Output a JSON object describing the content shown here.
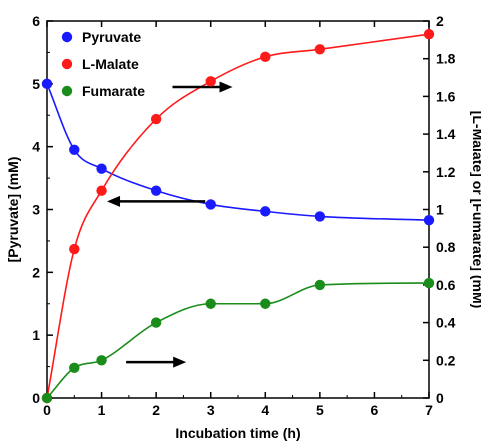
{
  "chart_data": {
    "type": "line",
    "xlabel": "Incubation time (h)",
    "ylabel_left": "[Pyruvate] (mM)",
    "ylabel_right": "[L-Malate] or [Fumarate] (mM)",
    "xlim": [
      0,
      7
    ],
    "ylim_left": [
      0,
      6
    ],
    "ylim_right": [
      0,
      2
    ],
    "x_ticks": [
      "0",
      "1",
      "2",
      "3",
      "4",
      "5",
      "6",
      "7"
    ],
    "y_left_ticks": [
      "0",
      "1",
      "2",
      "3",
      "4",
      "5",
      "6"
    ],
    "y_right_ticks": [
      "0",
      "0.2",
      "0.4",
      "0.6",
      "0.8",
      "1",
      "1.2",
      "1.4",
      "1.6",
      "1.8",
      "2"
    ],
    "grid": false,
    "legend_position": "top-left",
    "series": [
      {
        "name": "Pyruvate",
        "axis": "left",
        "color": "#1a1aff",
        "x": [
          0,
          0.5,
          1,
          2,
          3,
          4,
          5,
          7
        ],
        "y": [
          5.0,
          3.95,
          3.65,
          3.3,
          3.08,
          2.97,
          2.89,
          2.83
        ]
      },
      {
        "name": "L-Malate",
        "axis": "right",
        "color": "#ff1a1a",
        "x": [
          0,
          0.5,
          1,
          2,
          3,
          4,
          5,
          7
        ],
        "y": [
          0.0,
          0.79,
          1.1,
          1.48,
          1.68,
          1.81,
          1.85,
          1.93
        ]
      },
      {
        "name": "Fumarate",
        "axis": "right",
        "color": "#1a8c1a",
        "x": [
          0,
          0.5,
          1,
          2,
          3,
          4,
          5,
          7
        ],
        "y": [
          0.0,
          0.16,
          0.2,
          0.4,
          0.5,
          0.5,
          0.6,
          0.61
        ]
      }
    ],
    "annotations": [
      {
        "type": "arrow",
        "direction": "right",
        "x_from": 2.3,
        "x_to": 3.4,
        "y": 1.65,
        "axis": "right",
        "points_to": "L-Malate"
      },
      {
        "type": "arrow",
        "direction": "left",
        "x_from": 2.9,
        "x_to": 1.1,
        "y": 3.13,
        "axis": "left",
        "points_to": "Pyruvate"
      },
      {
        "type": "arrow",
        "direction": "right",
        "x_from": 1.45,
        "x_to": 2.55,
        "y": 0.19,
        "axis": "right",
        "points_to": "Fumarate"
      }
    ]
  }
}
